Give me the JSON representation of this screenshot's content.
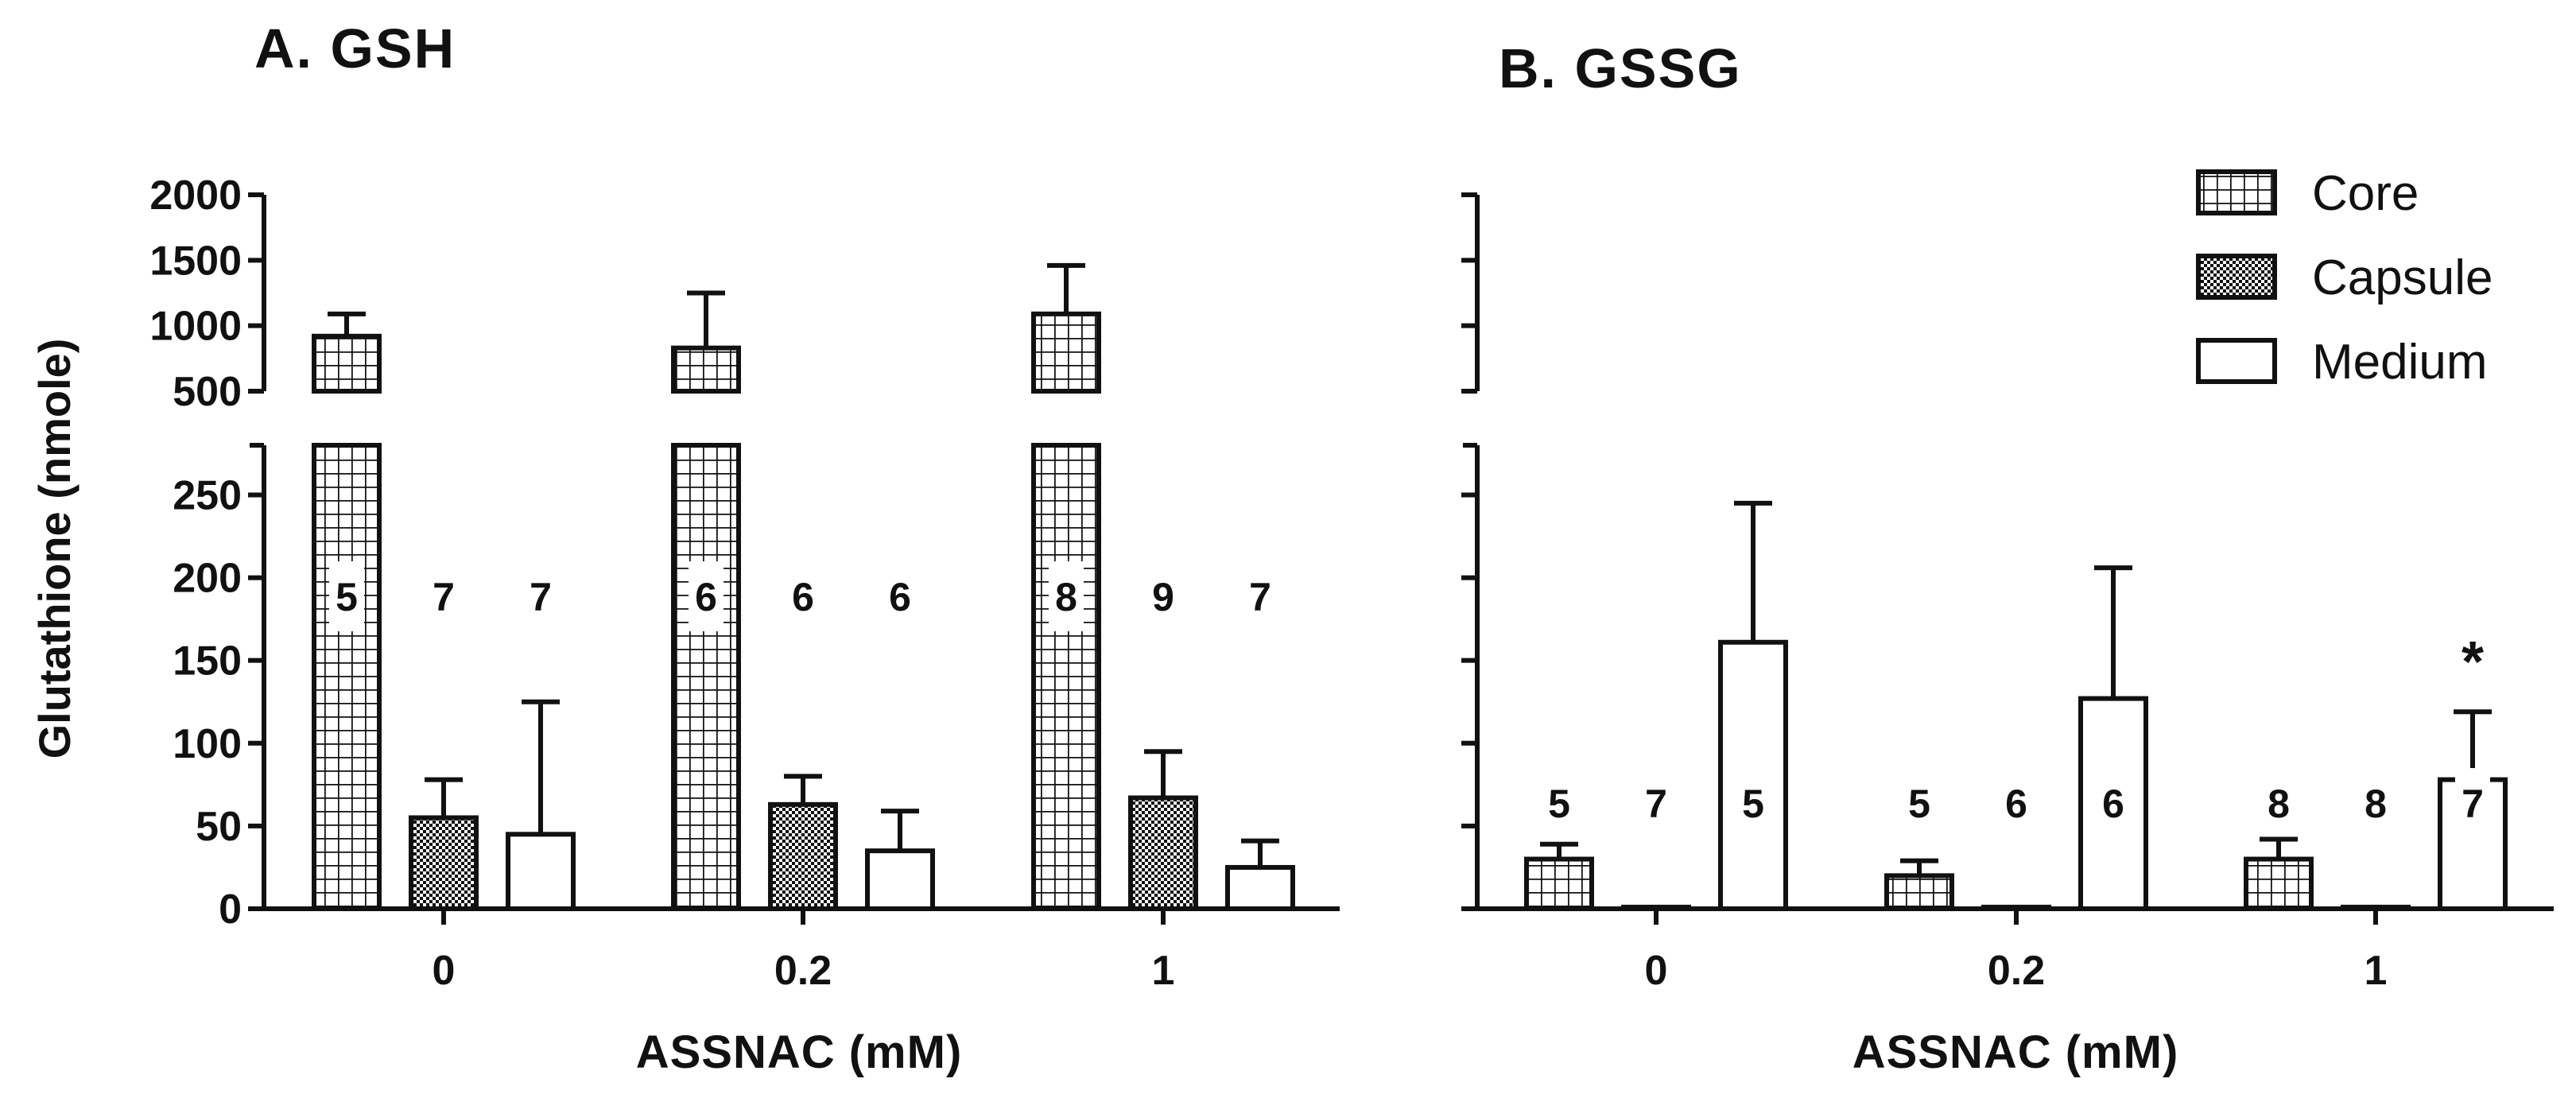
{
  "chart_data": [
    {
      "type": "bar",
      "title": "A. GSH",
      "ylabel": "Glutathione (nmole)",
      "xlabel": "ASSNAC (mM)",
      "categories": [
        "0",
        "0.2",
        "1"
      ],
      "y_axis_broken": true,
      "ylim_lower": [
        0,
        280
      ],
      "ylim_upper": [
        500,
        2000
      ],
      "yticks_lower": [
        "0",
        "50",
        "100",
        "150",
        "200",
        "250"
      ],
      "yticks_upper": [
        "500",
        "1000",
        "1500",
        "2000"
      ],
      "series": [
        {
          "name": "Core",
          "pattern": "grid",
          "values": [
            920,
            830,
            1090
          ],
          "error": [
            170,
            420,
            370
          ],
          "n": [
            "5",
            "6",
            "8"
          ]
        },
        {
          "name": "Capsule",
          "pattern": "dots",
          "values": [
            55,
            63,
            67
          ],
          "error": [
            23,
            17,
            28
          ],
          "n": [
            "7",
            "6",
            "9"
          ]
        },
        {
          "name": "Medium",
          "pattern": "open",
          "values": [
            45,
            35,
            25
          ],
          "error": [
            80,
            24,
            16
          ],
          "n": [
            "7",
            "6",
            "7"
          ]
        }
      ]
    },
    {
      "type": "bar",
      "title": "B. GSSG",
      "ylabel": "",
      "xlabel": "ASSNAC (mM)",
      "categories": [
        "0",
        "0.2",
        "1"
      ],
      "y_axis_broken": true,
      "ylim_lower": [
        0,
        280
      ],
      "ylim_upper": [
        500,
        2000
      ],
      "series": [
        {
          "name": "Core",
          "pattern": "grid",
          "values": [
            30,
            20,
            30
          ],
          "error": [
            9,
            9,
            12
          ],
          "n": [
            "5",
            "5",
            "8"
          ]
        },
        {
          "name": "Capsule",
          "pattern": "dots",
          "values": [
            1,
            1,
            1
          ],
          "error": [
            0,
            0,
            0
          ],
          "n": [
            "7",
            "6",
            "8"
          ]
        },
        {
          "name": "Medium",
          "pattern": "open",
          "values": [
            161,
            127,
            78
          ],
          "error": [
            84,
            79,
            41
          ],
          "n": [
            "5",
            "6",
            "7"
          ]
        }
      ],
      "annotations": [
        {
          "text": "*",
          "category": "1",
          "series": "Medium"
        }
      ]
    }
  ],
  "legend": [
    {
      "label": "Core",
      "pattern": "grid"
    },
    {
      "label": "Capsule",
      "pattern": "dots"
    },
    {
      "label": "Medium",
      "pattern": "open"
    }
  ]
}
